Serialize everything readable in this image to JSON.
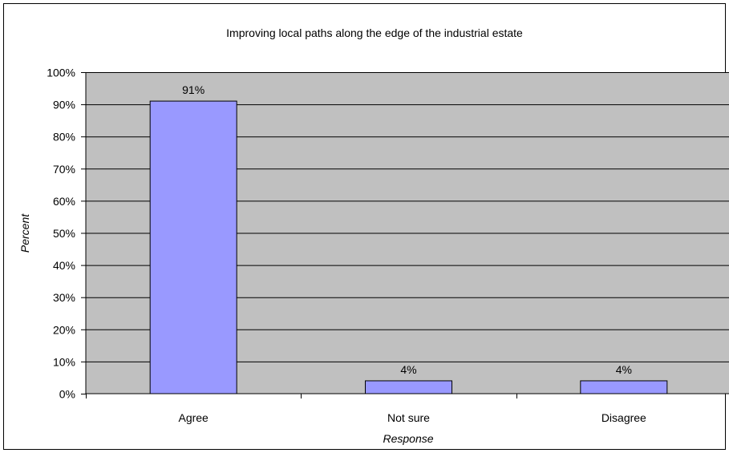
{
  "chart_data": {
    "type": "bar",
    "title": "Improving local paths along the edge of the industrial estate",
    "xlabel": "Response",
    "ylabel": "Percent",
    "categories": [
      "Agree",
      "Not sure",
      "Disagree"
    ],
    "values": [
      91,
      4,
      4
    ],
    "data_labels": [
      "91%",
      "4%",
      "4%"
    ],
    "ylim": [
      0,
      100
    ],
    "yticks": [
      0,
      10,
      20,
      30,
      40,
      50,
      60,
      70,
      80,
      90,
      100
    ],
    "ytick_labels": [
      "0%",
      "10%",
      "20%",
      "30%",
      "40%",
      "50%",
      "60%",
      "70%",
      "80%",
      "90%",
      "100%"
    ],
    "grid": true,
    "legend": "none",
    "colors": {
      "bar_fill": "#9999ff",
      "bar_stroke": "#000000",
      "plot_background": "#c0c0c0",
      "gridline": "#000000"
    }
  }
}
